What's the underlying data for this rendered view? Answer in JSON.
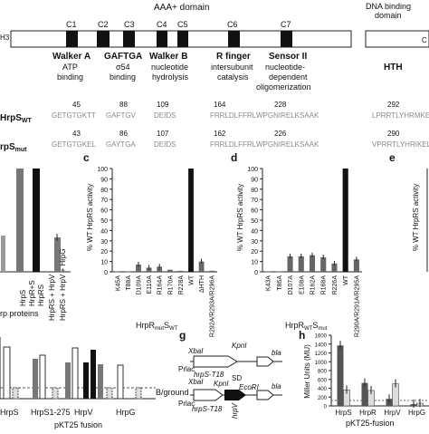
{
  "domain_map": {
    "aaa_title": "AAA+ domain",
    "dbd_title_line1": "DNA binding",
    "dbd_title_line2": "domain",
    "n_term": "H3",
    "c_term": "C",
    "boxes": [
      "C1",
      "C2",
      "C3",
      "C4",
      "C5",
      "C6",
      "C7"
    ],
    "motifs": [
      {
        "name": "Walker A",
        "desc1": "ATP",
        "desc2": "binding"
      },
      {
        "name": "GAFTGA",
        "desc1": "σ54",
        "desc2": "binding"
      },
      {
        "name": "Walker B",
        "desc1": "nucleotide",
        "desc2": "hydrolysis"
      },
      {
        "name": "R finger",
        "desc1": "intersubunit",
        "desc2": "catalysis"
      },
      {
        "name": "Sensor II",
        "desc1": "nucleotide-",
        "desc2": "dependent",
        "desc3": "oligomerization"
      },
      {
        "name": "HTH"
      }
    ]
  },
  "sequences": {
    "wt_label": "HrpS",
    "wt_sub": "WT",
    "mut_label": "rpS",
    "mut_sub": "mut",
    "wt_positions": [
      "45",
      "88",
      "109",
      "164",
      "228",
      "292"
    ],
    "mut_positions": [
      "43",
      "86",
      "107",
      "162",
      "226",
      "290"
    ],
    "wt_seqs": [
      "GETGTGKTT",
      "GAFTGV",
      "DEIDS",
      "FRRLDLFFRL",
      "WPGNIRELKSAAK",
      "LPRRTLYHRMKEL"
    ],
    "mut_seqs": [
      "GETGTGKEL",
      "GAYTGA",
      "DEIDS",
      "FRRLDLFFRL",
      "WPGNIRELKSAAK",
      "VPRRTLYHRIKEL"
    ]
  },
  "panels": {
    "c_label": "c",
    "d_label": "d",
    "e_label": "e",
    "g_label": "g",
    "h_label": "h"
  },
  "panel_b_partial": {
    "xlabel": "rp proteins",
    "categories": [
      "HrpS",
      "HrpR+S",
      "HrpRS",
      "HrpRS + HrpV",
      "HrpRS + HrpV + HrpG"
    ]
  },
  "chart_data": [
    {
      "type": "bar",
      "panel": "c",
      "ylabel": "% WT HrpRS activity",
      "xlabel_main": "HrpR",
      "xlabel_sub1": "mut",
      "xlabel_mid": "S",
      "xlabel_sub2": "WT",
      "ylim": [
        0,
        100
      ],
      "yticks": [
        0,
        10,
        20,
        30,
        40,
        50,
        60,
        70,
        80,
        90,
        100
      ],
      "categories": [
        "K45A",
        "T88A",
        "D109A",
        "E110A",
        "R164A",
        "R170A",
        "R228A",
        "WT",
        "ΔHTH",
        "R292A/R293A/R296A"
      ],
      "values": [
        0.5,
        0.5,
        7,
        4,
        5,
        2,
        1,
        100,
        10,
        1
      ]
    },
    {
      "type": "bar",
      "panel": "d",
      "ylabel": "% WT HrpRS activity",
      "xlabel_main": "HrpR",
      "xlabel_sub1": "WT",
      "xlabel_mid": "S",
      "xlabel_sub2": "mut",
      "ylim": [
        0,
        100
      ],
      "yticks": [
        0,
        10,
        20,
        30,
        40,
        50,
        60,
        70,
        80,
        90,
        100
      ],
      "categories": [
        "K43A",
        "T86A",
        "D107A",
        "E108A",
        "R162A",
        "R168A",
        "R226A",
        "WT",
        "R290A/R291A/R295A"
      ],
      "values": [
        0.5,
        0.5,
        15,
        15,
        16,
        14,
        8,
        100,
        12
      ]
    },
    {
      "type": "bar",
      "panel": "h",
      "ylabel": "Miller Units (MU)",
      "xlabel": "pKT25-fusion",
      "ylim": [
        0,
        1600
      ],
      "yticks": [
        0,
        200,
        400,
        600,
        800,
        1000,
        1200,
        1400,
        1600
      ],
      "categories": [
        "HrpS",
        "HrpR",
        "HrpV",
        "HrpG"
      ],
      "series": [
        {
          "values": [
            1370,
            520,
            160,
            40
          ]
        },
        {
          "values": [
            360,
            350,
            500,
            60
          ]
        }
      ]
    }
  ],
  "panel_f_partial": {
    "xlabel": "pKT25 fusion",
    "bground": "B/ground",
    "categories": [
      "HrpS",
      "HrpS1-275",
      "HrpV",
      "HrpG"
    ]
  },
  "panel_g": {
    "xbal": "XbaI",
    "kpnl": "KpnI",
    "prlac": "Prlac",
    "hrps_t18": "hrpS-T18",
    "bla": "bla",
    "sd": "SD",
    "ecori": "EcoRI",
    "hrpv": "hrpV"
  }
}
